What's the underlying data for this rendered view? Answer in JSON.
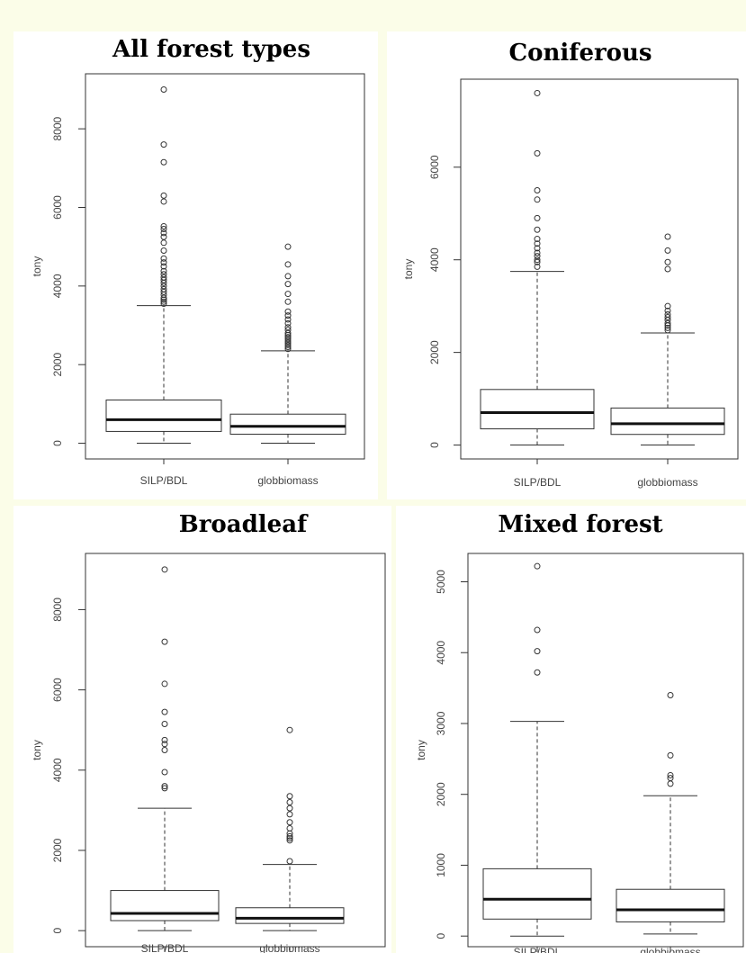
{
  "chart_data": [
    {
      "type": "boxplot",
      "title": "All forest types",
      "ylabel": "tony",
      "categories": [
        "SILP/BDL",
        "globbiomass"
      ],
      "yticks": [
        0,
        2000,
        4000,
        6000,
        8000
      ],
      "ylim": [
        -400,
        9400
      ],
      "boxes": [
        {
          "name": "SILP/BDL",
          "whisker_low": 0,
          "q1": 300,
          "median": 600,
          "q3": 1100,
          "whisker_high": 3500,
          "outliers": [
            3550,
            3600,
            3650,
            3700,
            3780,
            3850,
            3920,
            4000,
            4080,
            4150,
            4220,
            4300,
            4380,
            4500,
            4600,
            4700,
            4900,
            5100,
            5250,
            5350,
            5450,
            5520,
            6150,
            6300,
            7150,
            7600,
            9000
          ]
        },
        {
          "name": "globbiomass",
          "whisker_low": 0,
          "q1": 230,
          "median": 430,
          "q3": 740,
          "whisker_high": 2350,
          "outliers": [
            2400,
            2450,
            2500,
            2550,
            2600,
            2650,
            2700,
            2750,
            2800,
            2880,
            2950,
            3050,
            3150,
            3250,
            3350,
            3600,
            3800,
            4050,
            4250,
            4550,
            5000
          ]
        }
      ]
    },
    {
      "type": "boxplot",
      "title": "Coniferous",
      "ylabel": "tony",
      "categories": [
        "SILP/BDL",
        "globbiomass"
      ],
      "yticks": [
        0,
        2000,
        4000,
        6000
      ],
      "ylim": [
        -300,
        7900
      ],
      "boxes": [
        {
          "name": "SILP/BDL",
          "whisker_low": 0,
          "q1": 350,
          "median": 700,
          "q3": 1200,
          "whisker_high": 3750,
          "outliers": [
            3850,
            3950,
            4000,
            4080,
            4150,
            4250,
            4350,
            4450,
            4650,
            4900,
            5300,
            5500,
            6300,
            7600
          ]
        },
        {
          "name": "globbiomass",
          "whisker_low": 0,
          "q1": 230,
          "median": 460,
          "q3": 800,
          "whisker_high": 2420,
          "outliers": [
            2480,
            2530,
            2580,
            2630,
            2700,
            2760,
            2820,
            2900,
            3000,
            3800,
            3950,
            4200,
            4500
          ]
        }
      ]
    },
    {
      "type": "boxplot",
      "title": "Broadleaf",
      "ylabel": "tony",
      "categories": [
        "SILP/BDL",
        "globbiomass"
      ],
      "yticks": [
        0,
        2000,
        4000,
        6000,
        8000
      ],
      "ylim": [
        -400,
        9400
      ],
      "boxes": [
        {
          "name": "SILP/BDL",
          "whisker_low": 0,
          "q1": 250,
          "median": 430,
          "q3": 1000,
          "whisker_high": 3050,
          "outliers": [
            3550,
            3600,
            3950,
            4500,
            4650,
            4750,
            5150,
            5450,
            6150,
            7200,
            9000
          ]
        },
        {
          "name": "globbiomass",
          "whisker_low": 0,
          "q1": 180,
          "median": 310,
          "q3": 570,
          "whisker_high": 1650,
          "outliers": [
            1730,
            2250,
            2300,
            2350,
            2420,
            2550,
            2700,
            2900,
            3050,
            3200,
            3350,
            5000
          ]
        }
      ]
    },
    {
      "type": "boxplot",
      "title": "Mixed forest",
      "ylabel": "tony",
      "categories": [
        "SILP/BDL",
        "globbiomass"
      ],
      "yticks": [
        0,
        1000,
        2000,
        3000,
        4000,
        5000
      ],
      "ylim": [
        -150,
        5400
      ],
      "boxes": [
        {
          "name": "SILP/BDL",
          "whisker_low": 0,
          "q1": 240,
          "median": 520,
          "q3": 950,
          "whisker_high": 3030,
          "outliers": [
            3720,
            4020,
            4320,
            5220
          ]
        },
        {
          "name": "globbiomass",
          "whisker_low": 30,
          "q1": 200,
          "median": 370,
          "q3": 660,
          "whisker_high": 1980,
          "outliers": [
            2150,
            2230,
            2270,
            2550,
            3400
          ]
        }
      ]
    }
  ]
}
